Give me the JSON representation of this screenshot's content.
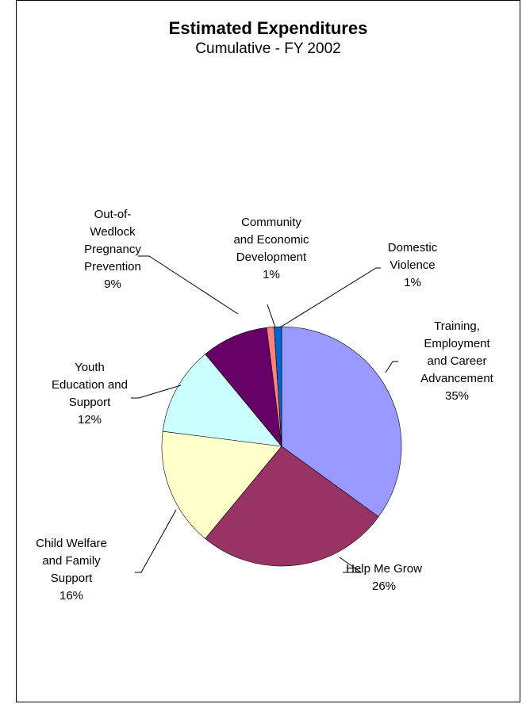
{
  "chart_data": {
    "type": "pie",
    "title": "Estimated Expenditures",
    "subtitle": "Cumulative - FY 2002",
    "slices": [
      {
        "label": "Training, Employment and Career Advancement",
        "label_lines": [
          "Training,",
          "Employment",
          "and Career",
          "Advancement"
        ],
        "value": 35,
        "pct_text": "35%",
        "color": "#9999FF"
      },
      {
        "label": "Help Me Grow",
        "label_lines": [
          "Help Me Grow"
        ],
        "value": 26,
        "pct_text": "26%",
        "color": "#993366"
      },
      {
        "label": "Child Welfare and Family Support",
        "label_lines": [
          "Child Welfare",
          "and Family",
          "Support"
        ],
        "value": 16,
        "pct_text": "16%",
        "color": "#FFFFCC"
      },
      {
        "label": "Youth Education and Support",
        "label_lines": [
          "Youth",
          "Education and",
          "Support"
        ],
        "value": 12,
        "pct_text": "12%",
        "color": "#CCFFFF"
      },
      {
        "label": "Out-of-Wedlock Pregnancy Prevention",
        "label_lines": [
          "Out-of-",
          "Wedlock",
          "Pregnancy",
          "Prevention"
        ],
        "value": 9,
        "pct_text": "9%",
        "color": "#660066"
      },
      {
        "label": "Community and Economic Development",
        "label_lines": [
          "Community",
          "and Economic",
          "Development"
        ],
        "value": 1,
        "pct_text": "1%",
        "color": "#FF8080"
      },
      {
        "label": "Domestic Violence",
        "label_lines": [
          "Domestic",
          "Violence"
        ],
        "value": 1,
        "pct_text": "1%",
        "color": "#0066CC"
      }
    ]
  }
}
